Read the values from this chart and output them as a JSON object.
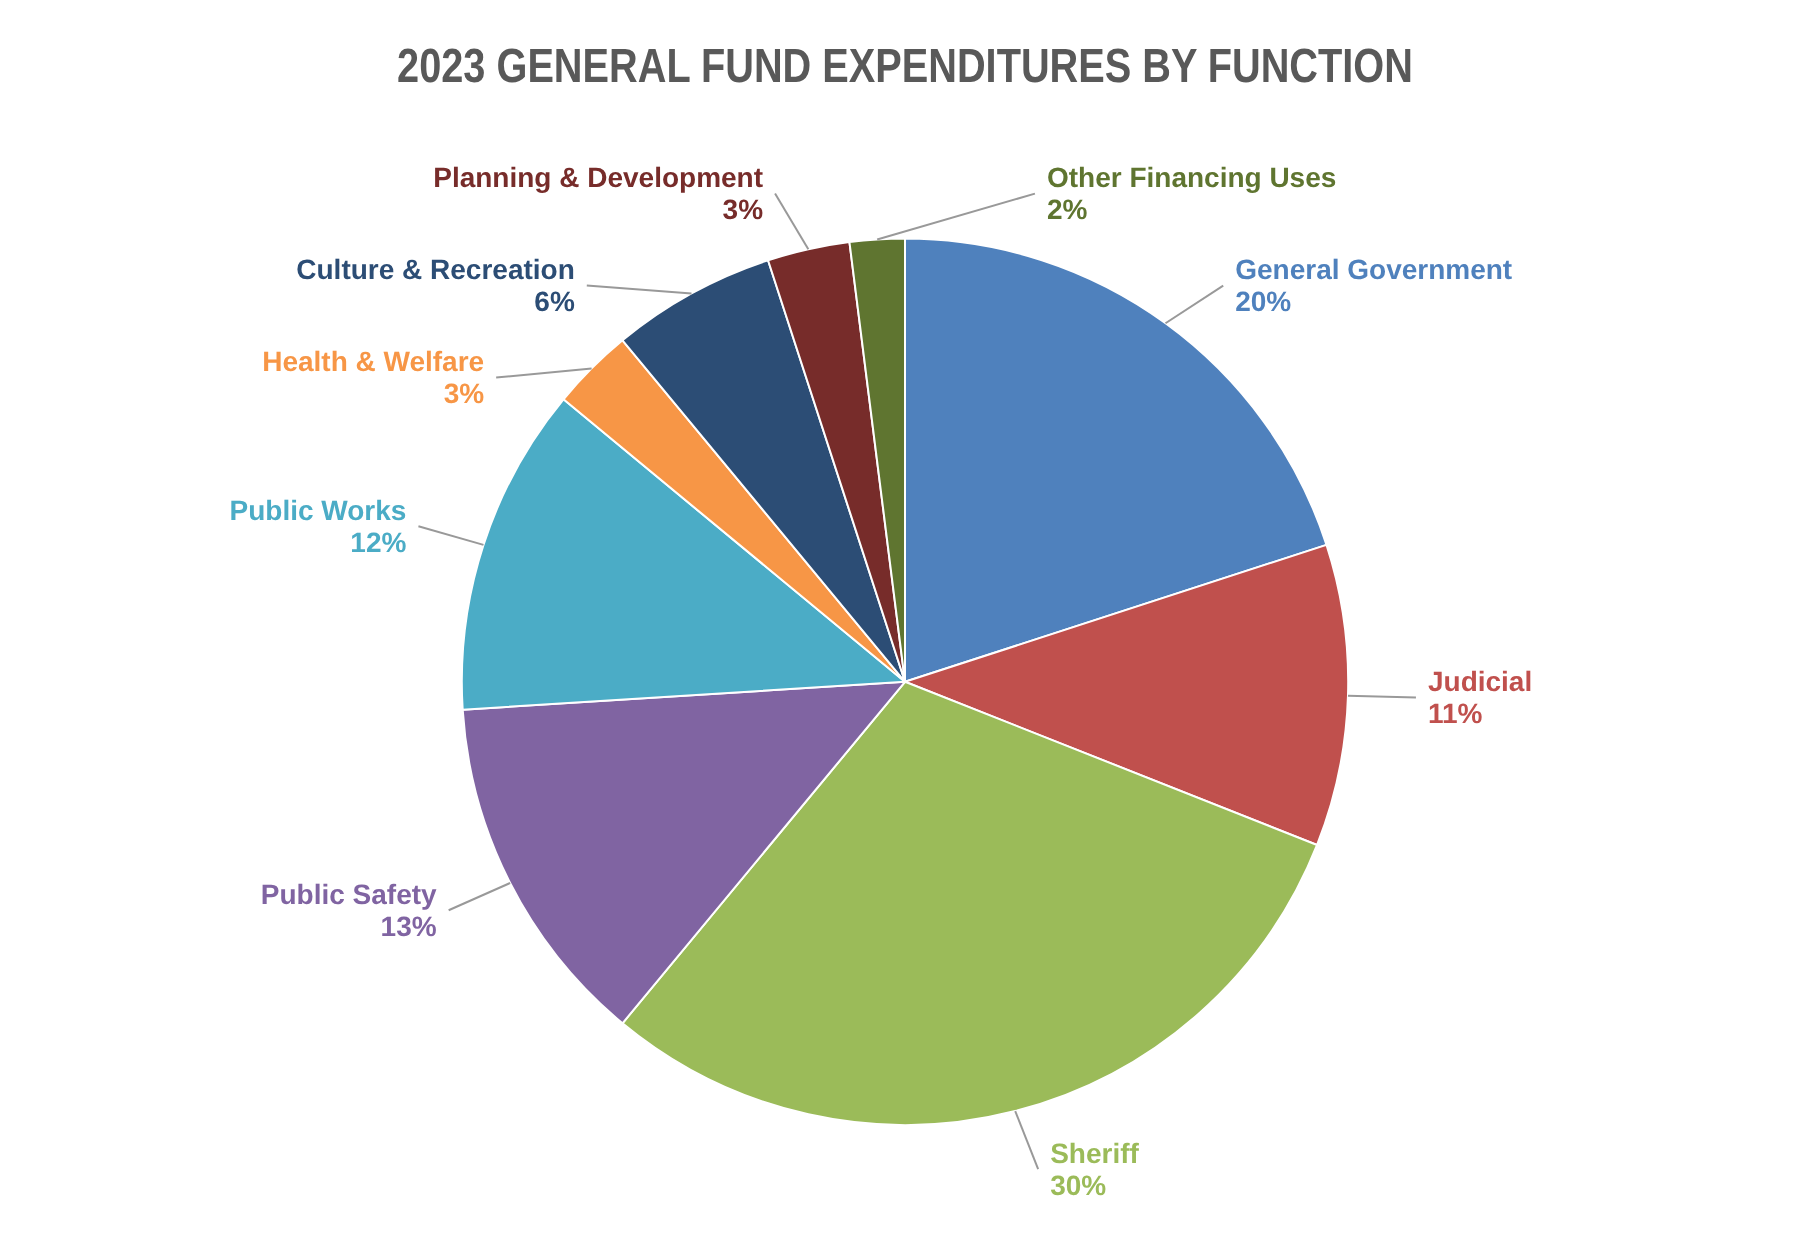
{
  "chart_data": {
    "type": "pie",
    "title": "2023 GENERAL FUND EXPENDITURES BY FUNCTION",
    "categories": [
      "General Government",
      "Judicial",
      "Sheriff",
      "Public Safety",
      "Public Works",
      "Health & Welfare",
      "Culture & Recreation",
      "Planning & Development",
      "Other Financing Uses"
    ],
    "values": [
      20,
      11,
      30,
      13,
      12,
      3,
      6,
      3,
      2
    ],
    "value_labels": [
      "20%",
      "11%",
      "30%",
      "13%",
      "12%",
      "3%",
      "6%",
      "3%",
      "2%"
    ],
    "colors": [
      "#4f81bd",
      "#c0504d",
      "#9bbb59",
      "#8064a2",
      "#4bacc6",
      "#f79646",
      "#2c4d75",
      "#772c2a",
      "#5f7530"
    ],
    "legend": false
  }
}
